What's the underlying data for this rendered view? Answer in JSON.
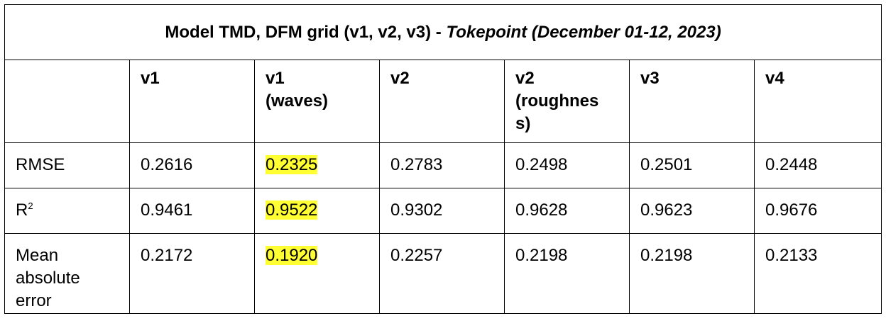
{
  "table": {
    "title_prefix": "Model TMD, DFM grid (v1, v2, v3) - ",
    "title_italic": "Tokepoint (December 01-12, 2023)",
    "columns": [
      "",
      "v1",
      "v1 (waves)",
      "v2",
      "v2 (roughness)",
      "v3",
      "v4"
    ],
    "header_display": [
      "",
      "v1",
      "v1\n(waves)",
      "v2",
      "v2\n(roughnes\ns)",
      "v3",
      "v4"
    ],
    "rows": [
      {
        "label": "RMSE",
        "values": [
          "0.2616",
          "0.2325",
          "0.2783",
          "0.2498",
          "0.2501",
          "0.2448"
        ],
        "highlight_index": 1
      },
      {
        "label_main": "R",
        "label_sup": "2",
        "values": [
          "0.9461",
          "0.9522",
          "0.9302",
          "0.9628",
          "0.9623",
          "0.9676"
        ],
        "highlight_index": 1
      },
      {
        "label": "Mean absolute error",
        "label_lines": [
          "Mean",
          "absolute",
          "error"
        ],
        "values": [
          "0.2172",
          "0.1920",
          "0.2257",
          "0.2198",
          "0.2198",
          "0.2133"
        ],
        "highlight_index": 1
      }
    ],
    "highlight_color": "#ffff33",
    "border_color": "#000000"
  }
}
